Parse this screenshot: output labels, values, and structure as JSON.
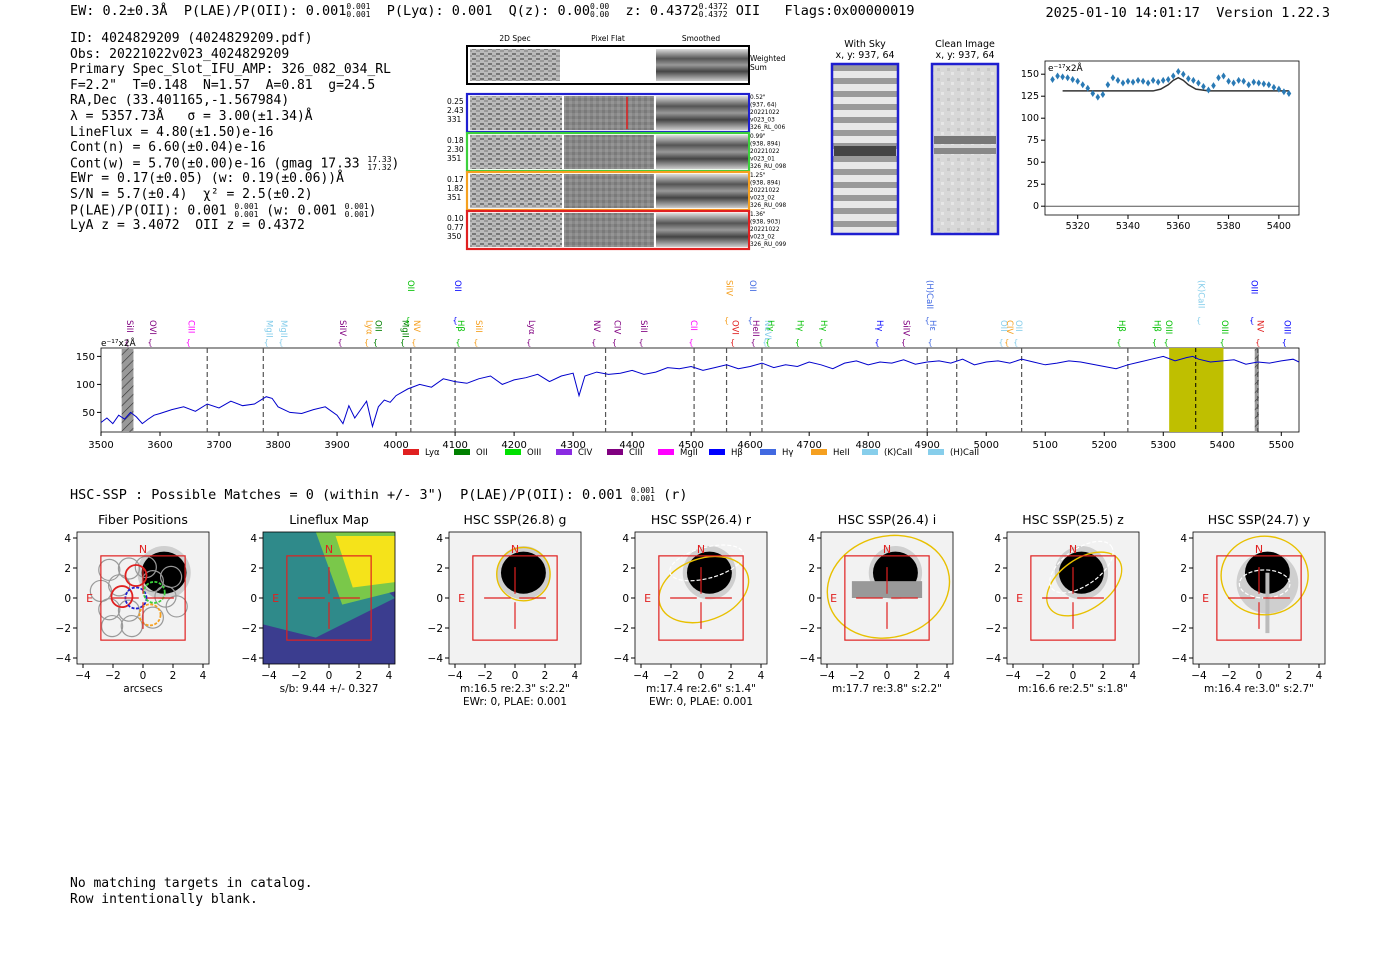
{
  "header": {
    "ew": "EW: 0.2±0.3Å",
    "plae_label": "P(LAE)/P(OII): 0.001",
    "plae_hi": "0.001",
    "plae_lo": "0.001",
    "plya": "P(Lyα): 0.001",
    "qz_label": "Q(z): 0.00",
    "qz_hi": "0.00",
    "qz_lo": "0.00",
    "z_label": "z: 0.4372",
    "z_hi": "0.4372",
    "z_lo": "0.4372",
    "z_line": "OII",
    "flags": "Flags:0x00000019",
    "datetime": "2025-01-10 14:01:17",
    "version": "Version 1.22.3"
  },
  "info": {
    "id": "ID: 4024829209 (4024829209.pdf)",
    "obs": "Obs: 20221022v023_4024829209",
    "primary": "Primary Spec_Slot_IFU_AMP: 326_082_034_RL",
    "params": "F=2.2\"  T=0.148  N=1.57  A=0.81  g=24.5",
    "radec": "RA,Dec (33.401165,-1.567984)",
    "lambda": "λ = 5357.73Å   σ = 3.00(±1.34)Å",
    "lineflux": "LineFlux = 4.80(±1.50)e-16",
    "contn": "Cont(n) = 6.60(±0.04)e-16",
    "contw_label": "Cont(w) = 5.70(±0.00)e-16 (gmag 17.33",
    "contw_hi": "17.33",
    "contw_lo": "17.32",
    "contw_end": ")",
    "ewr": "EWr = 0.17(±0.05) (w: 0.19(±0.06))Å",
    "sn": "S/N = 5.7(±0.4)  χ² = 2.5(±0.2)",
    "plae_label": "P(LAE)/P(OII): 0.001",
    "plae_hi": "0.001",
    "plae_lo": "0.001",
    "plae_w": "(w: 0.001",
    "plae_w_hi": "0.001",
    "plae_w_lo": "0.001",
    "plae_end": ")",
    "lyaz": "LyA z = 3.4072  OII z = 0.4372"
  },
  "cutouts": {
    "col_2d": "2D Spec",
    "col_flat": "Pixel Flat",
    "col_smooth": "Smoothed",
    "weighted": "Weighted",
    "sum": "Sum",
    "rows": [
      {
        "color": "#1f1fd0",
        "left": [
          "0.25",
          "2.43",
          "331"
        ],
        "right": [
          "0.52\"",
          "(937, 64)",
          "20221022",
          "v023_03",
          "326_RL_006"
        ]
      },
      {
        "color": "#3cd03c",
        "left": [
          "0.18",
          "2.30",
          "351"
        ],
        "right": [
          "0.99\"",
          "(938, 894)",
          "20221022",
          "v023_01",
          "326_RU_098"
        ]
      },
      {
        "color": "#f5a020",
        "left": [
          "0.17",
          "1.82",
          "351"
        ],
        "right": [
          "1.25\"",
          "(938, 894)",
          "20221022",
          "v023_02",
          "326_RU_098"
        ]
      },
      {
        "color": "#e02020",
        "left": [
          "0.10",
          "0.77",
          "350"
        ],
        "right": [
          "1.36\"",
          "(938, 903)",
          "20221022",
          "v023_02",
          "326_RU_099"
        ]
      }
    ]
  },
  "sky": {
    "with_sky": "With Sky",
    "with_sky_xy": "x, y: 937, 64",
    "clean": "Clean Image",
    "clean_xy": "x, y: 937, 64"
  },
  "zoom_chart": {
    "ylabel": "e⁻¹⁷x2Å",
    "x_ticks": [
      5320,
      5340,
      5360,
      5380,
      5400
    ],
    "y_ticks": [
      0,
      25,
      50,
      75,
      100,
      125,
      150
    ],
    "xlim": [
      5307,
      5408
    ],
    "ylim": [
      -10,
      165
    ],
    "data_x": [
      5310,
      5312,
      5314,
      5316,
      5318,
      5320,
      5322,
      5324,
      5326,
      5328,
      5330,
      5332,
      5334,
      5336,
      5338,
      5340,
      5342,
      5344,
      5346,
      5348,
      5350,
      5352,
      5354,
      5356,
      5358,
      5360,
      5362,
      5364,
      5366,
      5368,
      5370,
      5372,
      5374,
      5376,
      5378,
      5380,
      5382,
      5384,
      5386,
      5388,
      5390,
      5392,
      5394,
      5396,
      5398,
      5400,
      5402,
      5404
    ],
    "data_y": [
      144,
      148,
      147,
      146,
      144,
      142,
      138,
      134,
      128,
      124,
      127,
      138,
      146,
      143,
      140,
      142,
      141,
      143,
      142,
      140,
      143,
      141,
      143,
      144,
      148,
      153,
      150,
      145,
      143,
      140,
      136,
      132,
      137,
      146,
      148,
      142,
      140,
      143,
      142,
      138,
      141,
      140,
      139,
      138,
      135,
      133,
      130,
      128
    ],
    "model_x": [
      5314,
      5340,
      5350,
      5353,
      5356,
      5358,
      5360,
      5362,
      5364,
      5367,
      5372,
      5380,
      5404
    ],
    "model_y": [
      131,
      131,
      131,
      133,
      138,
      143,
      146,
      143,
      138,
      133,
      131,
      131,
      131
    ]
  },
  "chart_data": [
    {
      "type": "line",
      "title": "",
      "ylabel": "e⁻¹⁷x2Å",
      "xlabel": "",
      "xlim": [
        3500,
        5530
      ],
      "ylim": [
        15,
        165
      ],
      "x_ticks": [
        3500,
        3600,
        3700,
        3800,
        3900,
        4000,
        4100,
        4200,
        4300,
        4400,
        4500,
        4600,
        4700,
        4800,
        4900,
        5000,
        5100,
        5200,
        5300,
        5400,
        5500
      ],
      "y_ticks": [
        50,
        100,
        150
      ],
      "series": [
        {
          "name": "spectrum",
          "x": [
            3500,
            3510,
            3520,
            3530,
            3540,
            3550,
            3560,
            3570,
            3580,
            3590,
            3600,
            3620,
            3640,
            3660,
            3680,
            3700,
            3720,
            3740,
            3760,
            3780,
            3790,
            3800,
            3820,
            3840,
            3860,
            3880,
            3900,
            3910,
            3920,
            3930,
            3940,
            3950,
            3960,
            3970,
            3980,
            3990,
            4000,
            4020,
            4040,
            4060,
            4080,
            4100,
            4120,
            4140,
            4160,
            4180,
            4200,
            4220,
            4240,
            4260,
            4280,
            4300,
            4310,
            4320,
            4340,
            4360,
            4380,
            4400,
            4420,
            4440,
            4460,
            4480,
            4500,
            4520,
            4540,
            4560,
            4580,
            4600,
            4620,
            4640,
            4660,
            4680,
            4700,
            4720,
            4740,
            4760,
            4780,
            4800,
            4820,
            4840,
            4860,
            4880,
            4900,
            4920,
            4940,
            4960,
            4980,
            5000,
            5020,
            5040,
            5060,
            5080,
            5100,
            5120,
            5140,
            5160,
            5180,
            5200,
            5220,
            5240,
            5260,
            5280,
            5300,
            5320,
            5340,
            5350,
            5360,
            5380,
            5400,
            5420,
            5440,
            5460,
            5480,
            5500,
            5520,
            5530
          ],
          "y": [
            32,
            40,
            30,
            45,
            38,
            50,
            42,
            30,
            38,
            45,
            48,
            55,
            60,
            52,
            65,
            58,
            70,
            62,
            65,
            78,
            75,
            60,
            50,
            48,
            55,
            60,
            45,
            30,
            62,
            40,
            55,
            70,
            25,
            60,
            72,
            68,
            80,
            92,
            100,
            95,
            110,
            105,
            102,
            110,
            115,
            100,
            108,
            112,
            118,
            105,
            115,
            120,
            80,
            115,
            122,
            118,
            120,
            125,
            118,
            122,
            130,
            128,
            132,
            125,
            130,
            135,
            128,
            132,
            138,
            130,
            135,
            132,
            140,
            135,
            128,
            138,
            142,
            135,
            140,
            138,
            144,
            136,
            140,
            142,
            138,
            145,
            135,
            140,
            142,
            138,
            145,
            140,
            135,
            138,
            142,
            140,
            136,
            132,
            128,
            135,
            140,
            145,
            150,
            142,
            148,
            150,
            145,
            140,
            142,
            144,
            136,
            140,
            138,
            142,
            145,
            140
          ]
        }
      ],
      "lines": [
        {
          "name": "SiII",
          "wave": 3549,
          "color": "#800080"
        },
        {
          "name": "OVI",
          "wave": 3578,
          "color": "#800080"
        },
        {
          "name": "CIII",
          "wave": 3653,
          "color": "#ff00ff"
        },
        {
          "name": "MgII",
          "wave": 3775,
          "color": "#87ceeb"
        },
        {
          "name": "MgII",
          "wave": 3810,
          "color": "#87ceeb"
        },
        {
          "name": "SiIV",
          "wave": 3900,
          "color": "#800080"
        },
        {
          "name": "Lyα",
          "wave": 3955,
          "color": "#f5a020"
        },
        {
          "name": "OII",
          "wave": 3960,
          "color": "#008000"
        },
        {
          "name": "MgII",
          "wave": 4016,
          "color": "#008000"
        },
        {
          "name": "NV",
          "wave": 4025,
          "color": "#f5a020"
        },
        {
          "name": "OII",
          "wave": 4025,
          "color": "#00c000"
        },
        {
          "name": "Hβ",
          "wave": 4100,
          "color": "#00c000"
        },
        {
          "name": "OII",
          "wave": 4105,
          "color": "#0000ff"
        },
        {
          "name": "SiII",
          "wave": 4130,
          "color": "#f5a020"
        },
        {
          "name": "Lyα",
          "wave": 4230,
          "color": "#800080"
        },
        {
          "name": "NV",
          "wave": 4330,
          "color": "#800080"
        },
        {
          "name": "CIV",
          "wave": 4375,
          "color": "#800080"
        },
        {
          "name": "SiII",
          "wave": 4410,
          "color": "#800080"
        },
        {
          "name": "CII",
          "wave": 4505,
          "color": "#ff00ff"
        },
        {
          "name": "OVI",
          "wave": 4565,
          "color": "#e02020"
        },
        {
          "name": "SiIV",
          "wave": 4565,
          "color": "#f5a020"
        },
        {
          "name": "HeII",
          "wave": 4600,
          "color": "#800080"
        },
        {
          "name": "OII",
          "wave": 4605,
          "color": "#4169e1"
        },
        {
          "name": "NeVI",
          "wave": 4620,
          "color": "#87ceeb"
        },
        {
          "name": "Hγ",
          "wave": 4635,
          "color": "#00c000"
        },
        {
          "name": "Hγ",
          "wave": 4675,
          "color": "#00c000"
        },
        {
          "name": "Hγ",
          "wave": 4725,
          "color": "#00c000"
        },
        {
          "name": "Hγ",
          "wave": 4810,
          "color": "#0000ff"
        },
        {
          "name": "SiIV",
          "wave": 4865,
          "color": "#800080"
        },
        {
          "name": "Hε",
          "wave": 4900,
          "color": "#4169e1"
        },
        {
          "name": "(H)CaII",
          "wave": 4905,
          "color": "#4169e1"
        },
        {
          "name": "OII",
          "wave": 5020,
          "color": "#87ceeb"
        },
        {
          "name": "CIV",
          "wave": 5040,
          "color": "#f5a020"
        },
        {
          "name": "OII",
          "wave": 5045,
          "color": "#87ceeb"
        },
        {
          "name": "Hβ",
          "wave": 5230,
          "color": "#00c000"
        },
        {
          "name": "Hβ",
          "wave": 5280,
          "color": "#00c000"
        },
        {
          "name": "OIII",
          "wave": 5310,
          "color": "#00c000"
        },
        {
          "name": "(K)CaII",
          "wave": 5355,
          "color": "#87ceeb"
        },
        {
          "name": "OIII",
          "wave": 5405,
          "color": "#00c000"
        },
        {
          "name": "NV",
          "wave": 5455,
          "color": "#e02020"
        },
        {
          "name": "OIII",
          "wave": 5455,
          "color": "#0000ff"
        },
        {
          "name": "OIII",
          "wave": 5500,
          "color": "#0000ff"
        }
      ],
      "legend": [
        {
          "name": "Lyα",
          "color": "#e02020"
        },
        {
          "name": "OII",
          "color": "#008000"
        },
        {
          "name": "OIII",
          "color": "#00e000"
        },
        {
          "name": "CIV",
          "color": "#8a2be2"
        },
        {
          "name": "CIII",
          "color": "#800080"
        },
        {
          "name": "MgII",
          "color": "#ff00ff"
        },
        {
          "name": "Hβ",
          "color": "#0000ff"
        },
        {
          "name": "Hγ",
          "color": "#4169e1"
        },
        {
          "name": "HeII",
          "color": "#f5a020"
        },
        {
          "name": "(K)CaII",
          "color": "#87ceeb"
        },
        {
          "name": "(H)CaII",
          "color": "#87ceeb"
        }
      ]
    }
  ],
  "hsc": {
    "summary_label": "HSC-SSP : Possible Matches = 0 (within +/- 3\")  P(LAE)/P(OII): 0.001",
    "summary_hi": "0.001",
    "summary_lo": "0.001",
    "summary_end": "(r)",
    "panels": [
      {
        "title": "Fiber Positions",
        "caption": "arcsecs",
        "caption2": ""
      },
      {
        "title": "Lineflux Map",
        "caption": "s/b: 9.44 +/- 0.327",
        "caption2": ""
      },
      {
        "title": "HSC SSP(26.8) g",
        "caption": "m:16.5  re:2.3\"  s:2.2\"",
        "caption2": "EWr: 0, PLAE: 0.001"
      },
      {
        "title": "HSC SSP(26.4) r",
        "caption": "m:17.4  re:2.6\"  s:1.4\"",
        "caption2": "EWr: 0, PLAE: 0.001"
      },
      {
        "title": "HSC SSP(26.4) i",
        "caption": "m:17.7  re:3.8\"  s:2.2\"",
        "caption2": ""
      },
      {
        "title": "HSC SSP(25.5) z",
        "caption": "m:16.6  re:2.5\"  s:1.8\"",
        "caption2": ""
      },
      {
        "title": "HSC SSP(24.7) y",
        "caption": "m:16.4  re:3.0\"  s:2.7\"",
        "caption2": ""
      }
    ],
    "axis_ticks": [
      "-4",
      "-2",
      "0",
      "2",
      "4"
    ],
    "n_label": "N",
    "e_label": "E"
  },
  "bottom": {
    "line1": "No matching targets in catalog.",
    "line2": "Row intentionally blank."
  }
}
